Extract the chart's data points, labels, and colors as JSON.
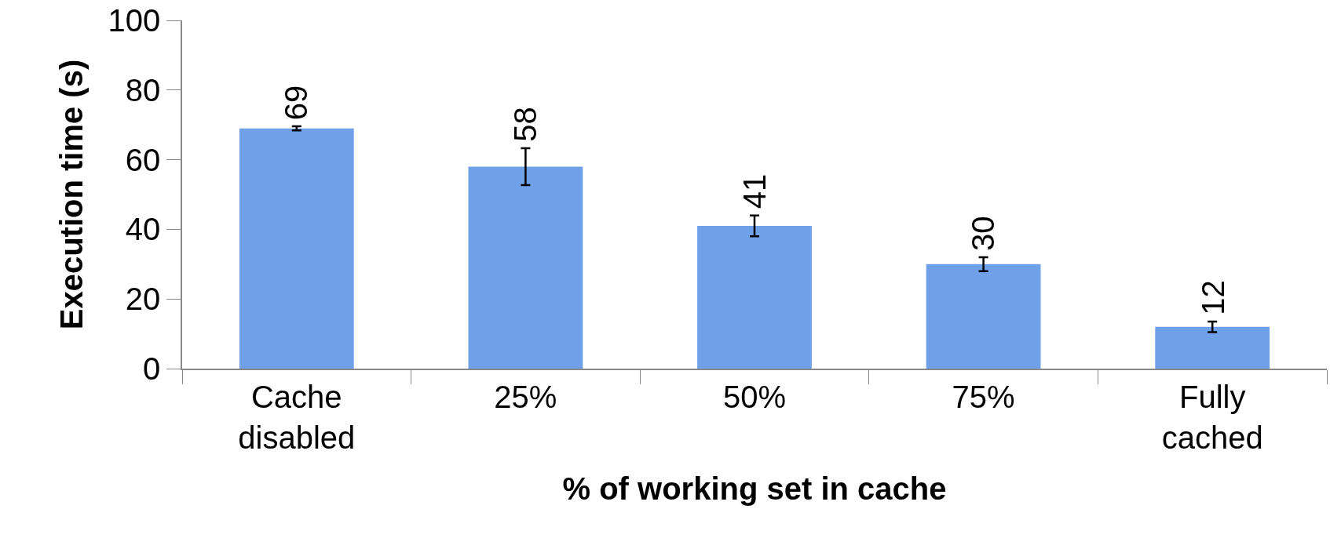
{
  "chart_data": {
    "type": "bar",
    "xlabel": "% of working set in cache",
    "ylabel": "Execution time (s)",
    "categories": [
      "Cache disabled",
      "25%",
      "50%",
      "75%",
      "Fully cached"
    ],
    "values": [
      69,
      58,
      41,
      30,
      12
    ],
    "errors": [
      0.6,
      5.3,
      3,
      2,
      1.5
    ],
    "color": "#6fa0e8",
    "ylim": [
      0,
      100
    ],
    "yticks": [
      0,
      20,
      40,
      60,
      80,
      100
    ],
    "grid": false,
    "legend": false,
    "data_labels": true
  }
}
